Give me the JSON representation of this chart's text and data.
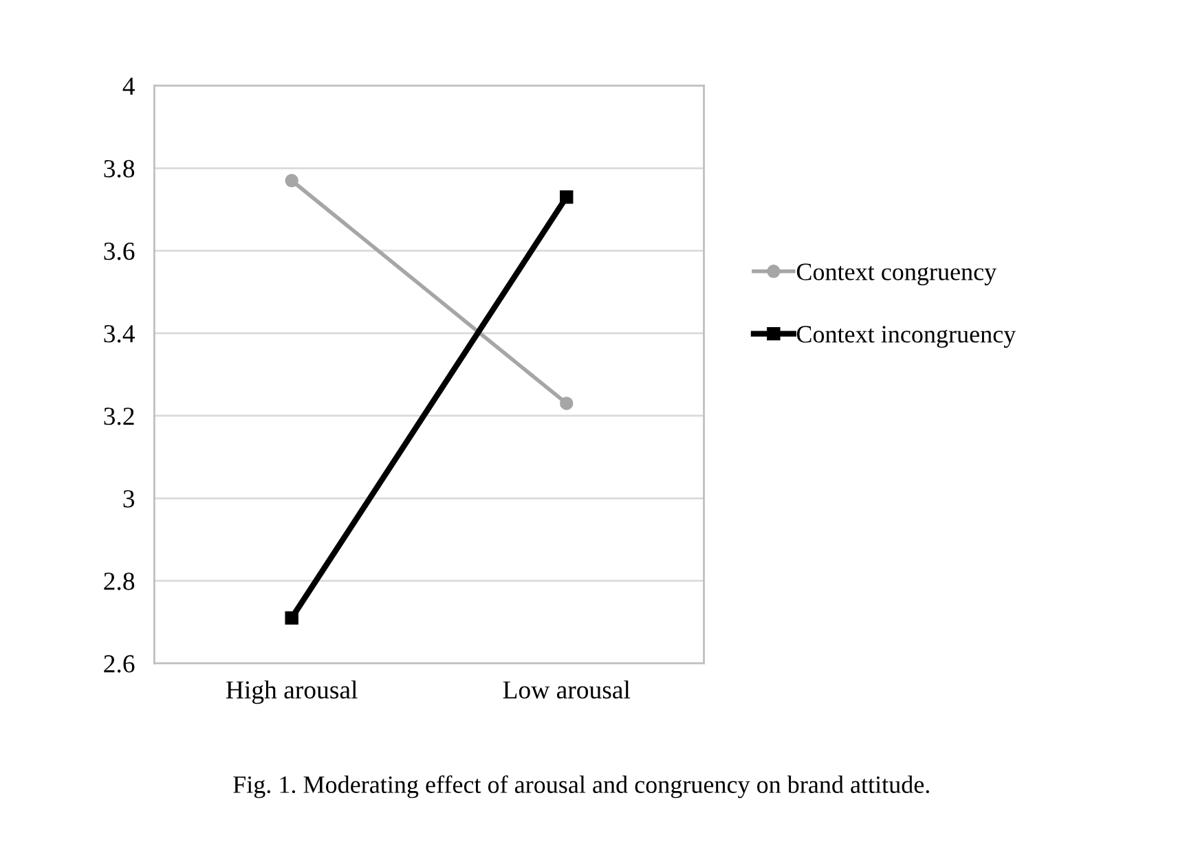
{
  "chart_data": {
    "type": "line",
    "categories": [
      "High arousal",
      "Low arousal"
    ],
    "series": [
      {
        "name": "Context congruency",
        "color": "#a6a6a6",
        "values": [
          3.77,
          3.23
        ],
        "marker": "circle"
      },
      {
        "name": "Context incongruency",
        "color": "#000000",
        "values": [
          2.71,
          3.73
        ],
        "marker": "square"
      }
    ],
    "ylim": [
      2.6,
      4
    ],
    "yticks": [
      2.6,
      2.8,
      3,
      3.2,
      3.4,
      3.6,
      3.8,
      4
    ],
    "grid": "y",
    "legend": "right",
    "line_style": "solid",
    "annotations": [
      "Fig. 1. Moderating effect of arousal and congruency on brand attitude."
    ]
  }
}
